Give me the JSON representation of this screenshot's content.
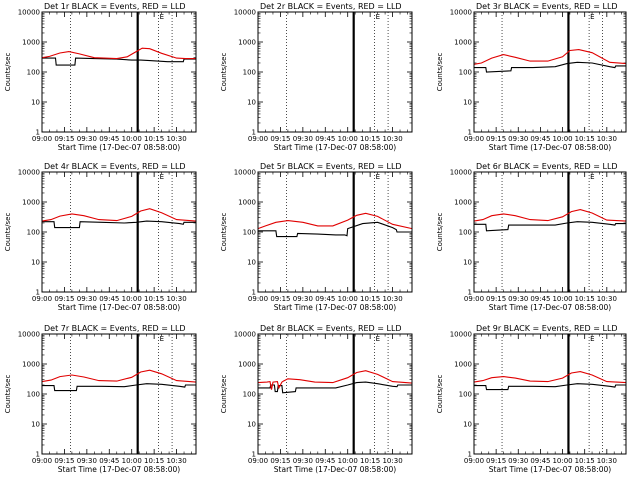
{
  "chart_data": {
    "type": "line",
    "layout": "3x3 grid",
    "xlabel": "Start Time (17-Dec-07 08:58:00)",
    "ylabel": "Counts/sec",
    "yscale": "log",
    "ylim": [
      1,
      10000
    ],
    "ytick_labels": [
      "1",
      "10",
      "100",
      "1000",
      "10000"
    ],
    "xlim_minutes": [
      540,
      643
    ],
    "xtick_labels": [
      "09:00",
      "09:15",
      "09:30",
      "09:45",
      "10:00",
      "10:15",
      "10:30"
    ],
    "xtick_minutes": [
      540,
      555,
      570,
      585,
      600,
      615,
      630
    ],
    "series_legend": {
      "black": "Events",
      "red": "LLD"
    },
    "markers": {
      "thick_line_minute": 604,
      "dotted_line_minutes": [
        559,
        618,
        627
      ],
      "small_label_text": "E",
      "small_label_minute": 618
    },
    "panels": [
      {
        "title": "Det 1r BLACK = Events, RED = LLD",
        "has_data": true,
        "series": [
          {
            "name": "Events",
            "color": "#000000",
            "x": [
              540,
              549,
              549.5,
              562,
              562.5,
              575,
              590,
              600,
              606,
              612,
              624,
              630,
              634.5,
              635,
              643
            ],
            "y": [
              290,
              290,
              170,
              170,
              290,
              280,
              270,
              250,
              250,
              240,
              220,
              220,
              220,
              270,
              270
            ]
          },
          {
            "name": "LLD",
            "color": "#e00000",
            "x": [
              540,
              545,
              552,
              558,
              565,
              575,
              590,
              597,
              603,
              607,
              612,
              620,
              630,
              636,
              643
            ],
            "y": [
              300,
              330,
              430,
              480,
              400,
              300,
              280,
              320,
              480,
              620,
              600,
              420,
              290,
              280,
              280
            ]
          }
        ]
      },
      {
        "title": "Det 2r BLACK = Events, RED = LLD",
        "has_data": false,
        "series": []
      },
      {
        "title": "Det 3r BLACK = Events, RED = LLD",
        "has_data": true,
        "series": [
          {
            "name": "Events",
            "color": "#000000",
            "x": [
              540,
              548,
              548.5,
              565,
              565.5,
              580,
              595,
              603,
              610,
              620,
              632,
              635.5,
              636,
              643
            ],
            "y": [
              140,
              140,
              100,
              110,
              140,
              140,
              150,
              190,
              210,
              200,
              150,
              140,
              160,
              160
            ]
          },
          {
            "name": "LLD",
            "color": "#e00000",
            "x": [
              540,
              545,
              552,
              560,
              568,
              578,
              590,
              600,
              605,
              611,
              620,
              632,
              643
            ],
            "y": [
              180,
              200,
              290,
              380,
              310,
              230,
              230,
              320,
              520,
              560,
              440,
              210,
              190
            ]
          }
        ]
      },
      {
        "title": "Det 4r BLACK = Events, RED = LLD",
        "has_data": true,
        "series": [
          {
            "name": "Events",
            "color": "#000000",
            "x": [
              540,
              548,
              548.5,
              565,
              565.5,
              580,
              595,
              603,
              610,
              620,
              632,
              634.5,
              635,
              643
            ],
            "y": [
              220,
              220,
              140,
              140,
              220,
              210,
              200,
              210,
              230,
              220,
              190,
              180,
              210,
              210
            ]
          },
          {
            "name": "LLD",
            "color": "#e00000",
            "x": [
              540,
              546,
              552,
              560,
              568,
              578,
              590,
              600,
              606,
              612,
              620,
              630,
              643
            ],
            "y": [
              230,
              260,
              340,
              400,
              350,
              260,
              240,
              330,
              500,
              600,
              440,
              260,
              230
            ]
          }
        ]
      },
      {
        "title": "Det 5r BLACK = Events, RED = LLD",
        "has_data": true,
        "series": [
          {
            "name": "Events",
            "color": "#000000",
            "x": [
              540,
              552,
              552.5,
              566,
              566.5,
              580,
              592,
              598,
              599.5,
              600,
              610,
              620,
              630,
              632.5,
              633,
              643
            ],
            "y": [
              110,
              110,
              70,
              70,
              90,
              85,
              80,
              80,
              75,
              130,
              190,
              210,
              140,
              120,
              100,
              100
            ]
          },
          {
            "name": "LLD",
            "color": "#e00000",
            "x": [
              540,
              545,
              552,
              560,
              570,
              580,
              590,
              600,
              606,
              612,
              620,
              630,
              643
            ],
            "y": [
              130,
              160,
              210,
              240,
              210,
              160,
              160,
              250,
              360,
              420,
              330,
              180,
              130
            ]
          }
        ]
      },
      {
        "title": "Det 6r BLACK = Events, RED = LLD",
        "has_data": true,
        "series": [
          {
            "name": "Events",
            "color": "#000000",
            "x": [
              540,
              548,
              548.5,
              563,
              563.5,
              580,
              595,
              603,
              610,
              620,
              632,
              635.5,
              636,
              643
            ],
            "y": [
              180,
              180,
              110,
              120,
              170,
              170,
              170,
              200,
              220,
              210,
              180,
              170,
              190,
              190
            ]
          },
          {
            "name": "LLD",
            "color": "#e00000",
            "x": [
              540,
              546,
              552,
              560,
              568,
              578,
              590,
              600,
              606,
              612,
              620,
              630,
              643
            ],
            "y": [
              230,
              260,
              350,
              400,
              350,
              260,
              240,
              320,
              480,
              560,
              430,
              250,
              230
            ]
          }
        ]
      },
      {
        "title": "Det 7r BLACK = Events, RED = LLD",
        "has_data": true,
        "series": [
          {
            "name": "Events",
            "color": "#000000",
            "x": [
              540,
              548,
              548.5,
              563,
              563.5,
              580,
              595,
              603,
              610,
              620,
              632,
              635.5,
              636,
              643
            ],
            "y": [
              190,
              190,
              130,
              130,
              180,
              180,
              175,
              200,
              220,
              210,
              180,
              170,
              200,
              200
            ]
          },
          {
            "name": "LLD",
            "color": "#e00000",
            "x": [
              540,
              546,
              552,
              560,
              568,
              578,
              590,
              600,
              606,
              612,
              620,
              630,
              643
            ],
            "y": [
              260,
              290,
              380,
              430,
              370,
              280,
              270,
              360,
              540,
              620,
              470,
              280,
              250
            ]
          }
        ]
      },
      {
        "title": "Det 8r BLACK = Events, RED = LLD",
        "has_data": true,
        "series": [
          {
            "name": "Events",
            "color": "#000000",
            "x": [
              540,
              548,
              548.5,
              551,
              551.5,
              553,
              553.5,
              556,
              556.5,
              565,
              565.5,
              580,
              592,
              600,
              606,
              612,
              620,
              630,
              633,
              633.5,
              643
            ],
            "y": [
              160,
              160,
              200,
              200,
              120,
              120,
              190,
              190,
              110,
              120,
              160,
              160,
              160,
              200,
              240,
              250,
              220,
              180,
              175,
              200,
              200
            ]
          },
          {
            "name": "LLD",
            "color": "#e00000",
            "x": [
              540,
              546,
              548,
              549,
              550,
              553,
              554,
              556,
              557,
              560,
              568,
              578,
              590,
              600,
              606,
              612,
              620,
              630,
              643
            ],
            "y": [
              240,
              250,
              260,
              140,
              250,
              260,
              160,
              250,
              270,
              320,
              300,
              250,
              240,
              350,
              520,
              600,
              450,
              260,
              230
            ]
          }
        ]
      },
      {
        "title": "Det 9r BLACK = Events, RED = LLD",
        "has_data": true,
        "series": [
          {
            "name": "Events",
            "color": "#000000",
            "x": [
              540,
              548,
              548.5,
              563,
              563.5,
              580,
              595,
              603,
              610,
              620,
              632,
              635.5,
              636,
              643
            ],
            "y": [
              190,
              190,
              140,
              140,
              180,
              180,
              175,
              200,
              220,
              210,
              180,
              170,
              200,
              200
            ]
          },
          {
            "name": "LLD",
            "color": "#e00000",
            "x": [
              540,
              546,
              552,
              560,
              568,
              578,
              590,
              600,
              606,
              612,
              620,
              630,
              643
            ],
            "y": [
              250,
              280,
              350,
              380,
              340,
              270,
              260,
              340,
              500,
              560,
              430,
              260,
              240
            ]
          }
        ]
      }
    ]
  }
}
